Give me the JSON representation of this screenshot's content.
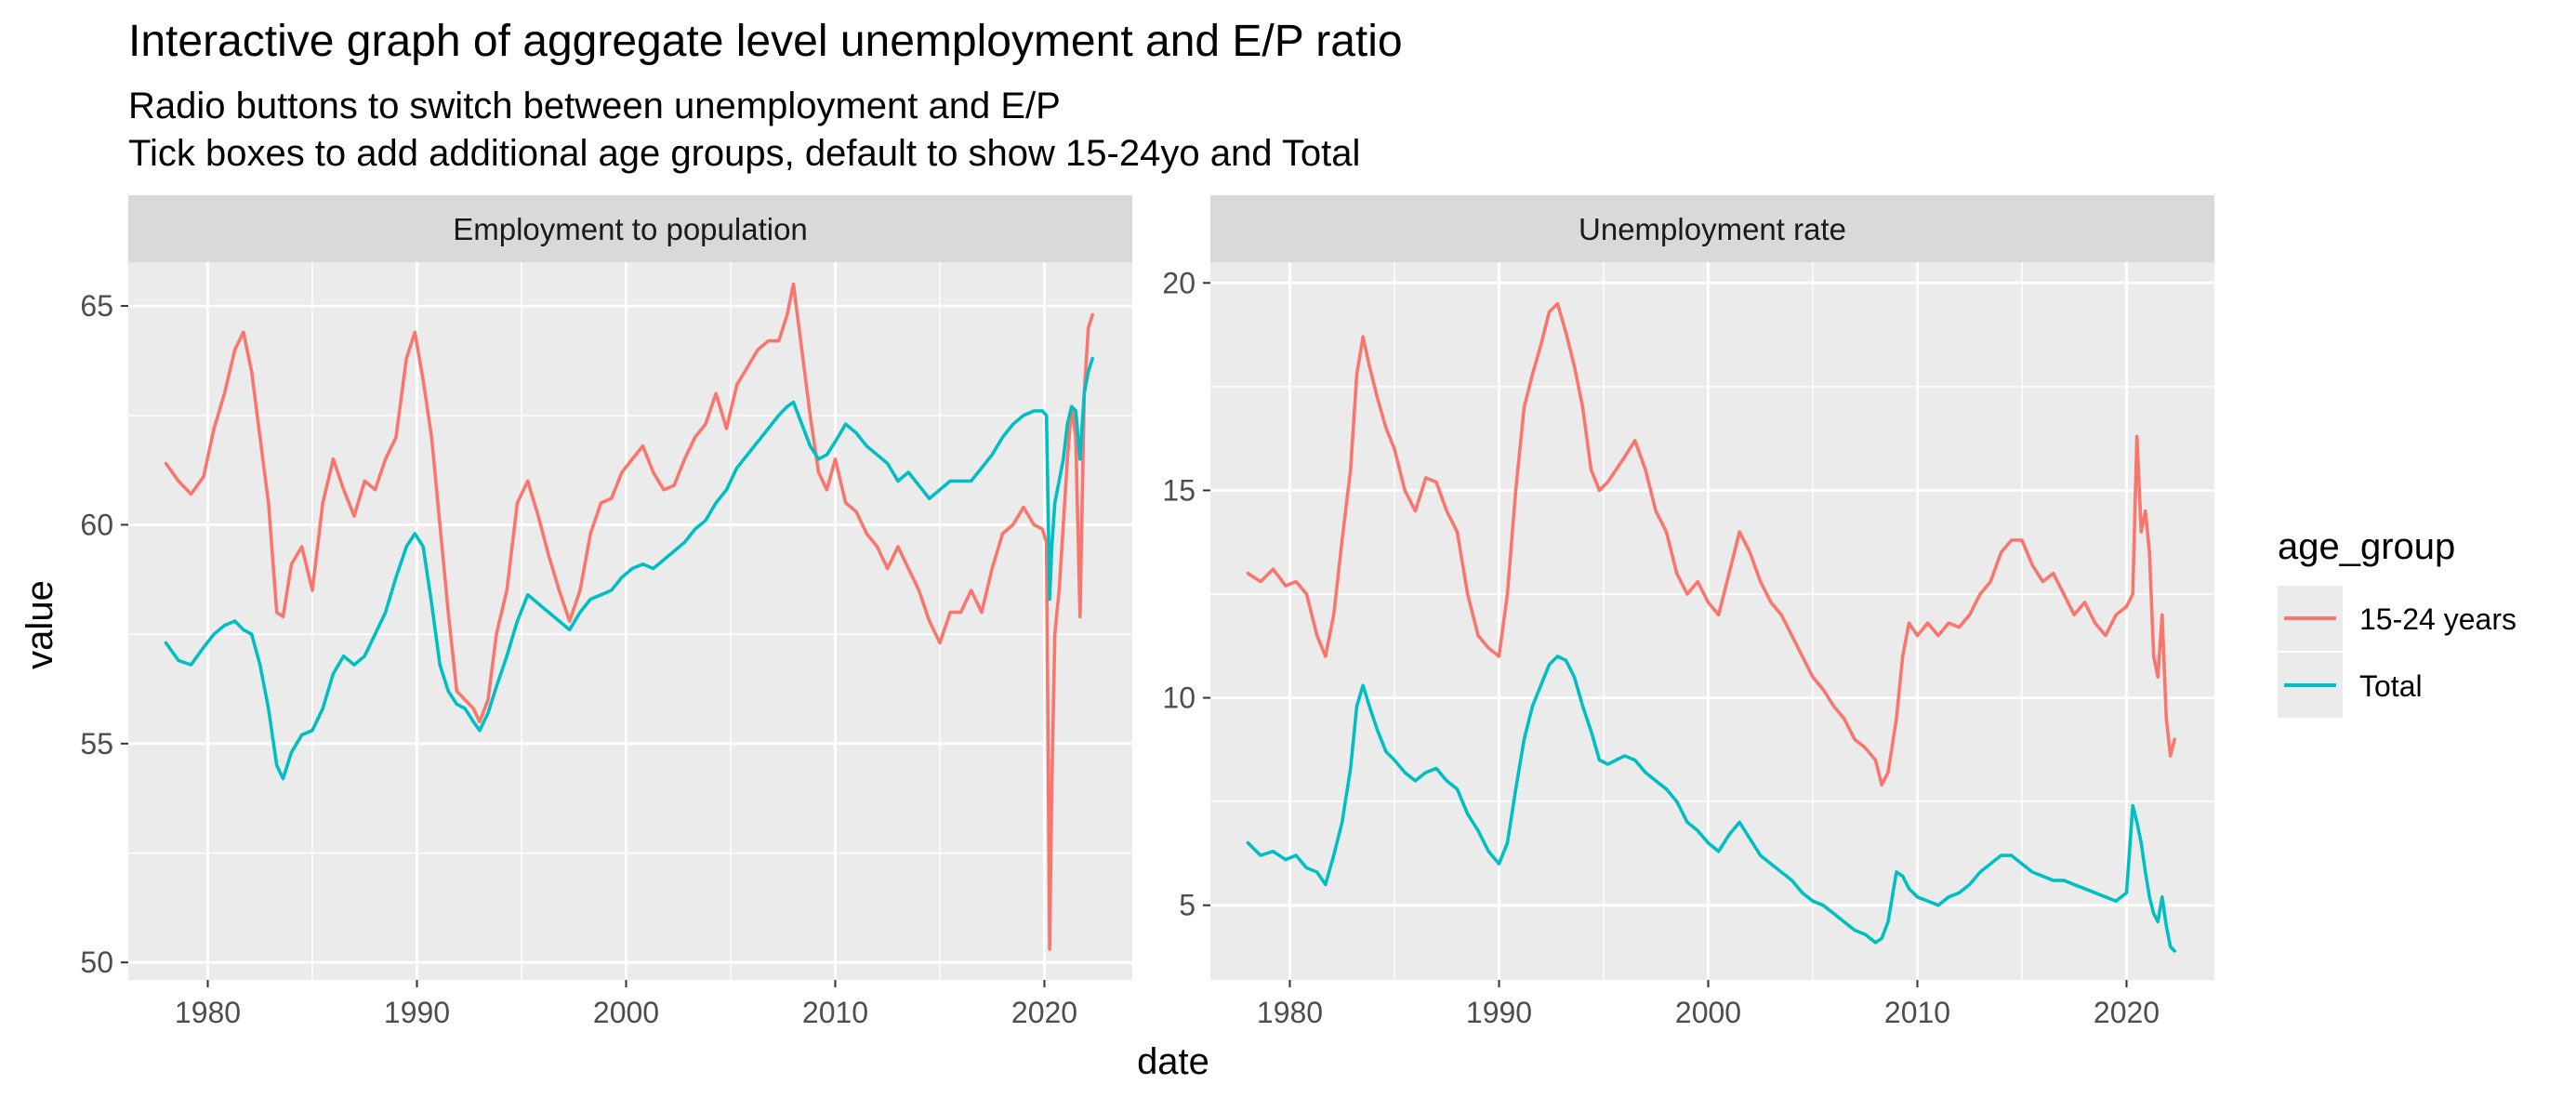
{
  "chart_data": {
    "type": "line",
    "title": "Interactive graph of aggregate level unemployment and E/P ratio",
    "subtitle_lines": [
      "Radio buttons to switch between unemployment and E/P",
      "Tick boxes to add additional age groups, default to show 15-24yo and Total"
    ],
    "xlabel": "date",
    "ylabel": "value",
    "x_ticks": [
      1980,
      1990,
      2000,
      2010,
      2020
    ],
    "legend": {
      "title": "age_group",
      "placement": "right",
      "entries": [
        "15-24 years",
        "Total"
      ]
    },
    "colors": {
      "15-24 years": "#F8766D",
      "Total": "#00BFC4"
    },
    "panels": [
      {
        "strip": "Employment to population",
        "xlim": [
          1976.2,
          2024.2
        ],
        "ylim": [
          49.6,
          66.0
        ],
        "y_ticks": [
          50,
          55,
          60,
          65
        ],
        "series": [
          {
            "name": "15-24 years",
            "x": [
              1978.0,
              1978.6,
              1979.2,
              1979.8,
              1980.3,
              1980.8,
              1981.3,
              1981.7,
              1982.1,
              1982.5,
              1982.9,
              1983.3,
              1983.6,
              1984.0,
              1984.5,
              1985.0,
              1985.5,
              1986.0,
              1986.5,
              1987.0,
              1987.5,
              1988.0,
              1988.5,
              1989.0,
              1989.5,
              1989.9,
              1990.3,
              1990.7,
              1991.1,
              1991.5,
              1991.9,
              1992.3,
              1992.7,
              1993.0,
              1993.4,
              1993.8,
              1994.3,
              1994.8,
              1995.3,
              1995.8,
              1996.3,
              1996.8,
              1997.3,
              1997.8,
              1998.3,
              1998.8,
              1999.3,
              1999.8,
              2000.3,
              2000.8,
              2001.3,
              2001.8,
              2002.3,
              2002.8,
              2003.3,
              2003.8,
              2004.3,
              2004.8,
              2005.3,
              2005.8,
              2006.3,
              2006.8,
              2007.3,
              2007.7,
              2008.0,
              2008.4,
              2008.8,
              2009.2,
              2009.6,
              2010.0,
              2010.5,
              2011.0,
              2011.5,
              2012.0,
              2012.5,
              2013.0,
              2013.5,
              2014.0,
              2014.5,
              2015.0,
              2015.5,
              2016.0,
              2016.5,
              2017.0,
              2017.5,
              2018.0,
              2018.5,
              2019.0,
              2019.5,
              2019.9,
              2020.1,
              2020.25,
              2020.35,
              2020.5,
              2020.7,
              2020.9,
              2021.1,
              2021.3,
              2021.5,
              2021.7,
              2021.9,
              2022.1,
              2022.3
            ],
            "values": [
              61.4,
              61.0,
              60.7,
              61.1,
              62.2,
              63.0,
              64.0,
              64.4,
              63.5,
              62.0,
              60.5,
              58.0,
              57.9,
              59.1,
              59.5,
              58.5,
              60.5,
              61.5,
              60.8,
              60.2,
              61.0,
              60.8,
              61.5,
              62.0,
              63.8,
              64.4,
              63.3,
              62.0,
              60.0,
              58.0,
              56.2,
              56.0,
              55.8,
              55.5,
              56.0,
              57.5,
              58.5,
              60.5,
              61.0,
              60.2,
              59.3,
              58.5,
              57.8,
              58.5,
              59.8,
              60.5,
              60.6,
              61.2,
              61.5,
              61.8,
              61.2,
              60.8,
              60.9,
              61.5,
              62.0,
              62.3,
              63.0,
              62.2,
              63.2,
              63.6,
              64.0,
              64.2,
              64.2,
              64.8,
              65.5,
              64.0,
              62.5,
              61.2,
              60.8,
              61.5,
              60.5,
              60.3,
              59.8,
              59.5,
              59.0,
              59.5,
              59.0,
              58.5,
              57.8,
              57.3,
              58.0,
              58.0,
              58.5,
              58.0,
              59.0,
              59.8,
              60.0,
              60.4,
              60.0,
              59.9,
              59.6,
              50.3,
              54.0,
              57.5,
              58.5,
              60.0,
              61.5,
              62.7,
              62.0,
              57.9,
              63.0,
              64.5,
              64.8
            ]
          },
          {
            "name": "Total",
            "x": [
              1978.0,
              1978.6,
              1979.2,
              1979.8,
              1980.3,
              1980.8,
              1981.3,
              1981.7,
              1982.1,
              1982.5,
              1982.9,
              1983.3,
              1983.6,
              1984.0,
              1984.5,
              1985.0,
              1985.5,
              1986.0,
              1986.5,
              1987.0,
              1987.5,
              1988.0,
              1988.5,
              1989.0,
              1989.5,
              1989.9,
              1990.3,
              1990.7,
              1991.1,
              1991.5,
              1991.9,
              1992.3,
              1992.7,
              1993.0,
              1993.4,
              1993.8,
              1994.3,
              1994.8,
              1995.3,
              1995.8,
              1996.3,
              1996.8,
              1997.3,
              1997.8,
              1998.3,
              1998.8,
              1999.3,
              1999.8,
              2000.3,
              2000.8,
              2001.3,
              2001.8,
              2002.3,
              2002.8,
              2003.3,
              2003.8,
              2004.3,
              2004.8,
              2005.3,
              2005.8,
              2006.3,
              2006.8,
              2007.3,
              2007.7,
              2008.0,
              2008.4,
              2008.8,
              2009.2,
              2009.6,
              2010.0,
              2010.5,
              2011.0,
              2011.5,
              2012.0,
              2012.5,
              2013.0,
              2013.5,
              2014.0,
              2014.5,
              2015.0,
              2015.5,
              2016.0,
              2016.5,
              2017.0,
              2017.5,
              2018.0,
              2018.5,
              2019.0,
              2019.5,
              2019.9,
              2020.1,
              2020.25,
              2020.35,
              2020.5,
              2020.7,
              2020.9,
              2021.1,
              2021.3,
              2021.5,
              2021.7,
              2021.9,
              2022.1,
              2022.3
            ],
            "values": [
              57.3,
              56.9,
              56.8,
              57.2,
              57.5,
              57.7,
              57.8,
              57.6,
              57.5,
              56.8,
              55.8,
              54.5,
              54.2,
              54.8,
              55.2,
              55.3,
              55.8,
              56.6,
              57.0,
              56.8,
              57.0,
              57.5,
              58.0,
              58.8,
              59.5,
              59.8,
              59.5,
              58.2,
              56.8,
              56.2,
              55.9,
              55.8,
              55.5,
              55.3,
              55.7,
              56.3,
              57.0,
              57.8,
              58.4,
              58.2,
              58.0,
              57.8,
              57.6,
              58.0,
              58.3,
              58.4,
              58.5,
              58.8,
              59.0,
              59.1,
              59.0,
              59.2,
              59.4,
              59.6,
              59.9,
              60.1,
              60.5,
              60.8,
              61.3,
              61.6,
              61.9,
              62.2,
              62.5,
              62.7,
              62.8,
              62.3,
              61.8,
              61.5,
              61.6,
              61.9,
              62.3,
              62.1,
              61.8,
              61.6,
              61.4,
              61.0,
              61.2,
              60.9,
              60.6,
              60.8,
              61.0,
              61.0,
              61.0,
              61.3,
              61.6,
              62.0,
              62.3,
              62.5,
              62.6,
              62.6,
              62.5,
              58.3,
              59.5,
              60.5,
              61.0,
              61.5,
              62.3,
              62.7,
              62.6,
              61.5,
              63.0,
              63.5,
              63.8
            ]
          }
        ]
      },
      {
        "strip": "Unemployment rate",
        "xlim": [
          1976.2,
          2024.2
        ],
        "ylim": [
          3.2,
          20.5
        ],
        "y_ticks": [
          5,
          10,
          15,
          20
        ],
        "series": [
          {
            "name": "15-24 years",
            "x": [
              1978.0,
              1978.6,
              1979.2,
              1979.8,
              1980.3,
              1980.8,
              1981.3,
              1981.7,
              1982.1,
              1982.5,
              1982.9,
              1983.2,
              1983.5,
              1983.8,
              1984.2,
              1984.6,
              1985.0,
              1985.5,
              1986.0,
              1986.5,
              1987.0,
              1987.5,
              1988.0,
              1988.5,
              1989.0,
              1989.5,
              1990.0,
              1990.4,
              1990.8,
              1991.2,
              1991.6,
              1992.0,
              1992.4,
              1992.8,
              1993.2,
              1993.6,
              1994.0,
              1994.4,
              1994.8,
              1995.2,
              1995.6,
              1996.0,
              1996.5,
              1997.0,
              1997.5,
              1998.0,
              1998.5,
              1999.0,
              1999.5,
              2000.0,
              2000.5,
              2001.0,
              2001.5,
              2002.0,
              2002.5,
              2003.0,
              2003.5,
              2004.0,
              2004.5,
              2005.0,
              2005.5,
              2006.0,
              2006.5,
              2007.0,
              2007.5,
              2008.0,
              2008.3,
              2008.6,
              2009.0,
              2009.3,
              2009.6,
              2010.0,
              2010.5,
              2011.0,
              2011.5,
              2012.0,
              2012.5,
              2013.0,
              2013.5,
              2014.0,
              2014.5,
              2015.0,
              2015.5,
              2016.0,
              2016.5,
              2017.0,
              2017.5,
              2018.0,
              2018.5,
              2019.0,
              2019.5,
              2020.0,
              2020.3,
              2020.5,
              2020.7,
              2020.9,
              2021.1,
              2021.3,
              2021.5,
              2021.7,
              2021.9,
              2022.1,
              2022.3
            ],
            "values": [
              13.0,
              12.8,
              13.1,
              12.7,
              12.8,
              12.5,
              11.5,
              11.0,
              12.0,
              13.8,
              15.5,
              17.8,
              18.7,
              18.0,
              17.2,
              16.5,
              16.0,
              15.0,
              14.5,
              15.3,
              15.2,
              14.5,
              14.0,
              12.5,
              11.5,
              11.2,
              11.0,
              12.5,
              15.0,
              17.0,
              17.8,
              18.5,
              19.3,
              19.5,
              18.8,
              18.0,
              17.0,
              15.5,
              15.0,
              15.2,
              15.5,
              15.8,
              16.2,
              15.5,
              14.5,
              14.0,
              13.0,
              12.5,
              12.8,
              12.3,
              12.0,
              13.0,
              14.0,
              13.5,
              12.8,
              12.3,
              12.0,
              11.5,
              11.0,
              10.5,
              10.2,
              9.8,
              9.5,
              9.0,
              8.8,
              8.5,
              7.9,
              8.2,
              9.5,
              11.0,
              11.8,
              11.5,
              11.8,
              11.5,
              11.8,
              11.7,
              12.0,
              12.5,
              12.8,
              13.5,
              13.8,
              13.8,
              13.2,
              12.8,
              13.0,
              12.5,
              12.0,
              12.3,
              11.8,
              11.5,
              12.0,
              12.2,
              12.5,
              16.3,
              14.0,
              14.5,
              13.5,
              11.0,
              10.5,
              12.0,
              9.5,
              8.6,
              9.0
            ]
          },
          {
            "name": "Total",
            "x": [
              1978.0,
              1978.6,
              1979.2,
              1979.8,
              1980.3,
              1980.8,
              1981.3,
              1981.7,
              1982.1,
              1982.5,
              1982.9,
              1983.2,
              1983.5,
              1983.8,
              1984.2,
              1984.6,
              1985.0,
              1985.5,
              1986.0,
              1986.5,
              1987.0,
              1987.5,
              1988.0,
              1988.5,
              1989.0,
              1989.5,
              1990.0,
              1990.4,
              1990.8,
              1991.2,
              1991.6,
              1992.0,
              1992.4,
              1992.8,
              1993.2,
              1993.6,
              1994.0,
              1994.4,
              1994.8,
              1995.2,
              1995.6,
              1996.0,
              1996.5,
              1997.0,
              1997.5,
              1998.0,
              1998.5,
              1999.0,
              1999.5,
              2000.0,
              2000.5,
              2001.0,
              2001.5,
              2002.0,
              2002.5,
              2003.0,
              2003.5,
              2004.0,
              2004.5,
              2005.0,
              2005.5,
              2006.0,
              2006.5,
              2007.0,
              2007.5,
              2008.0,
              2008.3,
              2008.6,
              2009.0,
              2009.3,
              2009.6,
              2010.0,
              2010.5,
              2011.0,
              2011.5,
              2012.0,
              2012.5,
              2013.0,
              2013.5,
              2014.0,
              2014.5,
              2015.0,
              2015.5,
              2016.0,
              2016.5,
              2017.0,
              2017.5,
              2018.0,
              2018.5,
              2019.0,
              2019.5,
              2020.0,
              2020.3,
              2020.5,
              2020.7,
              2020.9,
              2021.1,
              2021.3,
              2021.5,
              2021.7,
              2021.9,
              2022.1,
              2022.3
            ],
            "values": [
              6.5,
              6.2,
              6.3,
              6.1,
              6.2,
              5.9,
              5.8,
              5.5,
              6.2,
              7.0,
              8.3,
              9.8,
              10.3,
              9.8,
              9.2,
              8.7,
              8.5,
              8.2,
              8.0,
              8.2,
              8.3,
              8.0,
              7.8,
              7.2,
              6.8,
              6.3,
              6.0,
              6.5,
              7.8,
              9.0,
              9.8,
              10.3,
              10.8,
              11.0,
              10.9,
              10.5,
              9.8,
              9.2,
              8.5,
              8.4,
              8.5,
              8.6,
              8.5,
              8.2,
              8.0,
              7.8,
              7.5,
              7.0,
              6.8,
              6.5,
              6.3,
              6.7,
              7.0,
              6.6,
              6.2,
              6.0,
              5.8,
              5.6,
              5.3,
              5.1,
              5.0,
              4.8,
              4.6,
              4.4,
              4.3,
              4.1,
              4.2,
              4.6,
              5.8,
              5.7,
              5.4,
              5.2,
              5.1,
              5.0,
              5.2,
              5.3,
              5.5,
              5.8,
              6.0,
              6.2,
              6.2,
              6.0,
              5.8,
              5.7,
              5.6,
              5.6,
              5.5,
              5.4,
              5.3,
              5.2,
              5.1,
              5.3,
              7.4,
              7.0,
              6.5,
              5.8,
              5.2,
              4.8,
              4.6,
              5.2,
              4.5,
              4.0,
              3.9
            ]
          }
        ]
      }
    ]
  }
}
